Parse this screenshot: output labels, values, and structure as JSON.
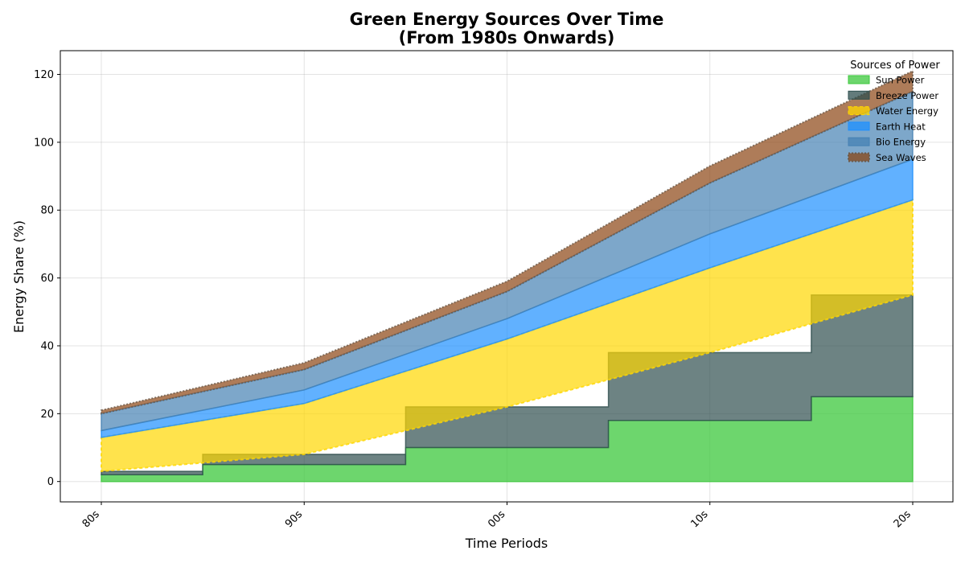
{
  "chart_data": {
    "type": "area",
    "title_lines": [
      "Green Energy Sources Over Time",
      "(From 1980s Onwards)"
    ],
    "xlabel": "Time Periods",
    "ylabel": "Energy Share (%)",
    "categories": [
      "80s",
      "90s",
      "00s",
      "10s",
      "20s"
    ],
    "ylim": [
      -6,
      127
    ],
    "yticks": [
      0,
      20,
      40,
      60,
      80,
      100,
      120
    ],
    "grid": true,
    "legend": {
      "title": "Sources of Power",
      "placement": "top-right"
    },
    "series": [
      {
        "name": "Sun Power",
        "values": [
          2,
          5,
          10,
          18,
          25
        ],
        "step": true,
        "color": "#3cc83c"
      },
      {
        "name": "Breeze Power",
        "values": [
          1,
          3,
          12,
          20,
          30
        ],
        "step": true,
        "color": "#2f4f4f"
      },
      {
        "name": "Water Energy",
        "values": [
          10,
          15,
          20,
          25,
          28
        ],
        "step": false,
        "color": "#ffd700"
      },
      {
        "name": "Earth Heat",
        "values": [
          2,
          4,
          6,
          10,
          12
        ],
        "step": false,
        "color": "#1e90ff"
      },
      {
        "name": "Bio Energy",
        "values": [
          5,
          6,
          8,
          15,
          20
        ],
        "step": false,
        "color": "#4682b4"
      },
      {
        "name": "Sea Waves",
        "values": [
          1,
          2,
          3,
          5,
          6
        ],
        "step": false,
        "color": "#8b4513"
      }
    ]
  }
}
